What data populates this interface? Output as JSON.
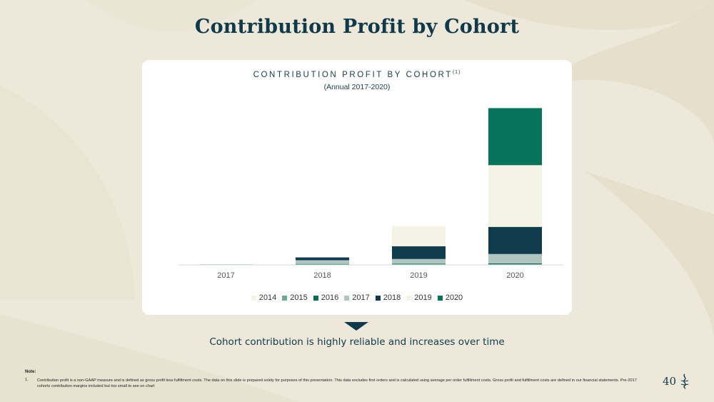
{
  "slide": {
    "title": "Contribution Profit by Cohort",
    "caption": "Cohort contribution is highly reliable and increases over time",
    "page_number": "40",
    "note_heading": "Note:",
    "note_number": "1.",
    "note_text": "Contribution profit is a non-GAAP measure and is defined as gross profit less fulfillment costs. The data on this slide is prepared solely for purposes of this presentation. This data excludes first orders and is calculated using average per order fulfillment costs. Gross profit and fulfillment costs are defined in our financial statements. Pre-2017 cohorts contribution margins included but too small to see on chart"
  },
  "chart_data": {
    "type": "bar",
    "stacked": true,
    "title": "CONTRIBUTION PROFIT BY COHORT",
    "title_superscript": "(1)",
    "subtitle": "(Annual 2017-2020)",
    "categories": [
      "2017",
      "2018",
      "2019",
      "2020"
    ],
    "series": [
      {
        "name": "2014",
        "color": "#f5f2e6",
        "values": [
          0.1,
          0.1,
          0.1,
          0.1
        ]
      },
      {
        "name": "2015",
        "color": "#6fa99a",
        "values": [
          0.0,
          0.1,
          0.1,
          0.1
        ]
      },
      {
        "name": "2016",
        "color": "#0b6b57",
        "values": [
          0.0,
          0.1,
          0.2,
          0.3
        ]
      },
      {
        "name": "2017",
        "color": "#b0c4c2",
        "values": [
          0.1,
          1.2,
          1.5,
          3.0
        ]
      },
      {
        "name": "2018",
        "color": "#0f3b4c",
        "values": [
          0.0,
          0.9,
          4.1,
          8.7
        ]
      },
      {
        "name": "2019",
        "color": "#f5f2e6",
        "values": [
          0.0,
          0.0,
          6.5,
          19.8
        ]
      },
      {
        "name": "2020",
        "color": "#07735a",
        "values": [
          0.0,
          0.0,
          0.0,
          18.3
        ]
      }
    ],
    "xlabel": "",
    "ylabel": "",
    "ylim": [
      0,
      52
    ],
    "y_axis_shown": false,
    "legend_position": "bottom"
  }
}
